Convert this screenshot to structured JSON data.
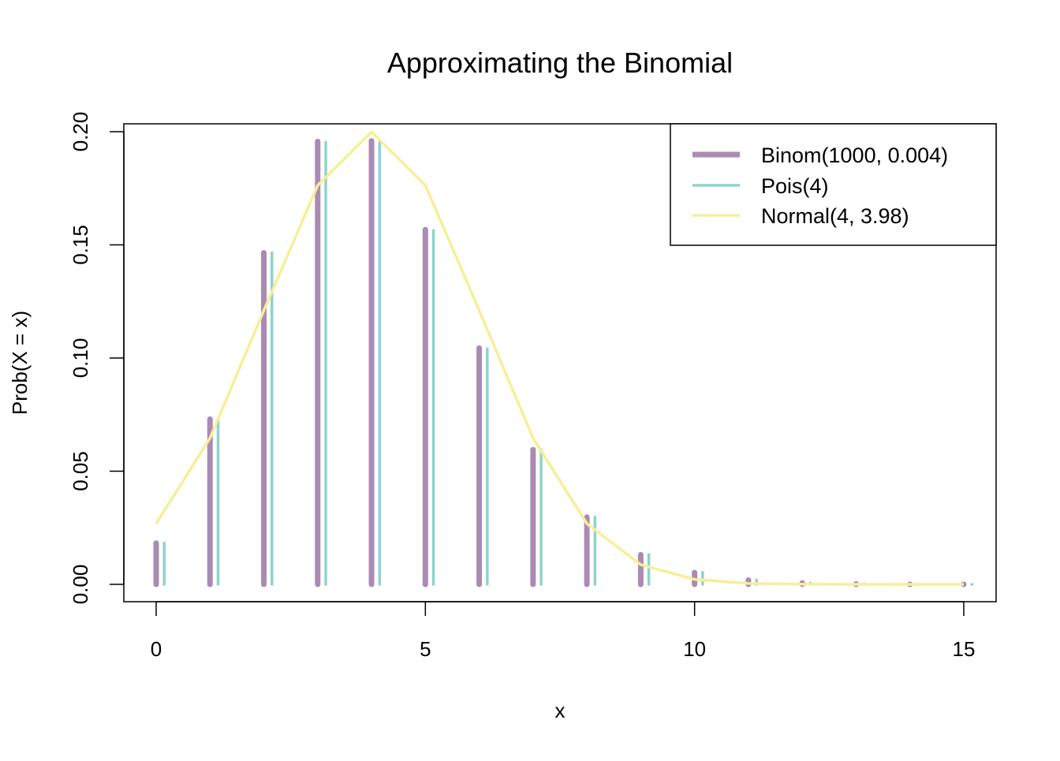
{
  "chart_data": {
    "type": "line",
    "title": "Approximating the Binomial",
    "xlabel": "x",
    "ylabel": "Prob(X = x)",
    "xlim": [
      0,
      15
    ],
    "ylim": [
      0,
      0.2
    ],
    "xticks": [
      "0",
      "5",
      "10",
      "15"
    ],
    "xtick_values": [
      0,
      5,
      10,
      15
    ],
    "yticks": [
      "0.00",
      "0.05",
      "0.10",
      "0.15",
      "0.20"
    ],
    "ytick_values": [
      0,
      0.05,
      0.1,
      0.15,
      0.2
    ],
    "grid": false,
    "legend_position": "top-right",
    "x": [
      0,
      1,
      2,
      3,
      4,
      5,
      6,
      7,
      8,
      9,
      10,
      11,
      12,
      13,
      14,
      15
    ],
    "series": [
      {
        "name": "Binom(1000, 0.004)",
        "kind": "spikes",
        "color": "#AA8BB4",
        "values": [
          0.0182,
          0.073,
          0.1465,
          0.1957,
          0.1959,
          0.1567,
          0.1044,
          0.0595,
          0.0297,
          0.0131,
          0.0052,
          0.0019,
          0.0006,
          0.0002,
          5e-05,
          1e-05
        ]
      },
      {
        "name": "Pois(4)",
        "kind": "spikes",
        "color": "#8DD3CF",
        "values": [
          0.0183,
          0.0733,
          0.1465,
          0.1954,
          0.1954,
          0.1563,
          0.1042,
          0.0595,
          0.0298,
          0.0132,
          0.0053,
          0.0019,
          0.0006,
          0.0002,
          6e-05,
          2e-05
        ]
      },
      {
        "name": "Normal(4, 3.98)",
        "kind": "line",
        "color": "#F8EE98",
        "values": [
          0.0268,
          0.0646,
          0.121,
          0.1763,
          0.1999,
          0.1763,
          0.121,
          0.0646,
          0.0268,
          0.0087,
          0.0022,
          0.0004,
          7e-05,
          1e-05,
          0,
          0
        ]
      }
    ]
  }
}
